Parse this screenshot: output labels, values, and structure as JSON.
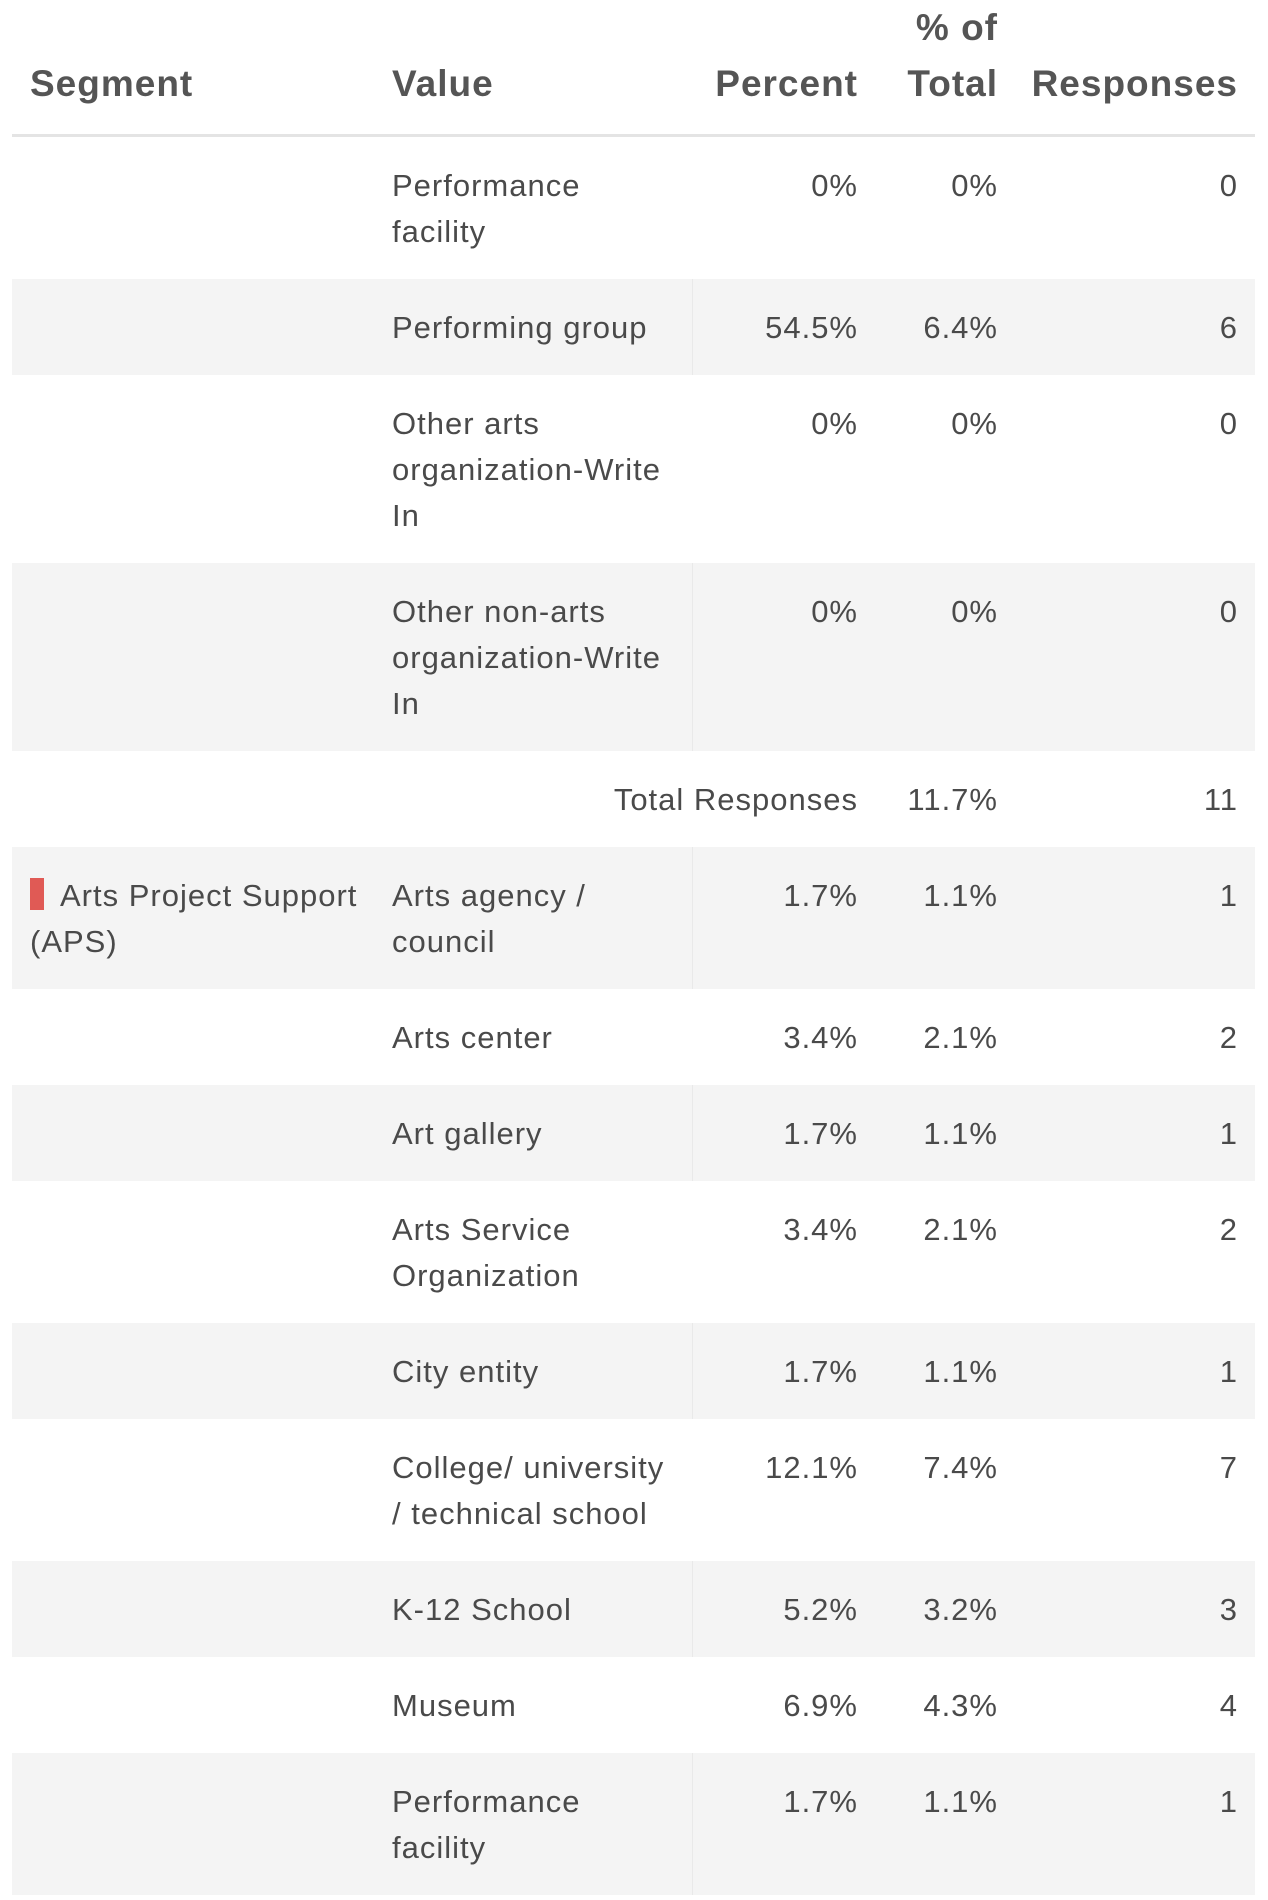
{
  "table": {
    "columns": [
      "Segment",
      "Value",
      "Percent",
      "% of Total",
      "Responses"
    ],
    "rows": [
      {
        "segment": null,
        "value": "Performance facility",
        "percent": "0%",
        "pct_total": "0%",
        "responses": "0"
      },
      {
        "segment": null,
        "value": "Performing group",
        "percent": "54.5%",
        "pct_total": "6.4%",
        "responses": "6"
      },
      {
        "segment": null,
        "value": "Other arts organization-Write In",
        "percent": "0%",
        "pct_total": "0%",
        "responses": "0"
      },
      {
        "segment": null,
        "value": "Other non-arts organization-Write In",
        "percent": "0%",
        "pct_total": "0%",
        "responses": "0"
      },
      {
        "total_label": "Total Responses",
        "pct_total": "11.7%",
        "responses": "11"
      },
      {
        "segment": "Arts Project Support (APS)",
        "marker_color": "#e05a55",
        "value": "Arts agency / council",
        "percent": "1.7%",
        "pct_total": "1.1%",
        "responses": "1"
      },
      {
        "segment": null,
        "value": "Arts center",
        "percent": "3.4%",
        "pct_total": "2.1%",
        "responses": "2"
      },
      {
        "segment": null,
        "value": "Art gallery",
        "percent": "1.7%",
        "pct_total": "1.1%",
        "responses": "1"
      },
      {
        "segment": null,
        "value": "Arts Service Organization",
        "percent": "3.4%",
        "pct_total": "2.1%",
        "responses": "2"
      },
      {
        "segment": null,
        "value": "City entity",
        "percent": "1.7%",
        "pct_total": "1.1%",
        "responses": "1"
      },
      {
        "segment": null,
        "value": "College/ university / technical school",
        "percent": "12.1%",
        "pct_total": "7.4%",
        "responses": "7"
      },
      {
        "segment": null,
        "value": "K-12 School",
        "percent": "5.2%",
        "pct_total": "3.2%",
        "responses": "3"
      },
      {
        "segment": null,
        "value": "Museum",
        "percent": "6.9%",
        "pct_total": "4.3%",
        "responses": "4"
      },
      {
        "segment": null,
        "value": "Performance facility",
        "percent": "1.7%",
        "pct_total": "1.1%",
        "responses": "1"
      }
    ]
  }
}
